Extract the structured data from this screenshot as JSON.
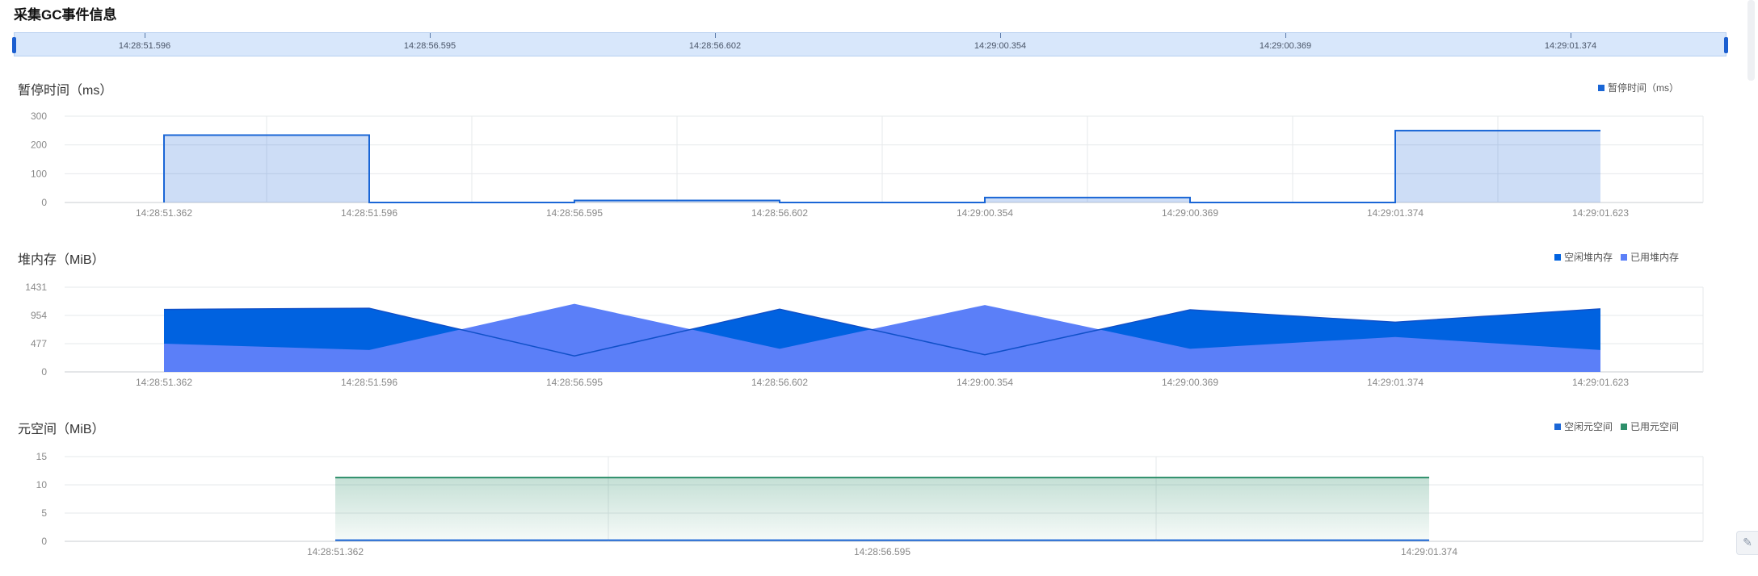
{
  "page": {
    "title": "采集GC事件信息"
  },
  "timeline": {
    "labels": [
      "14:28:51.596",
      "14:28:56.595",
      "14:28:56.602",
      "14:29:00.354",
      "14:29:00.369",
      "14:29:01.374"
    ]
  },
  "colors": {
    "pause": "#1a66d6",
    "heap_free": "#0062e0",
    "heap_used": "#5b7ff8",
    "meta_free": "#1a66d6",
    "meta_used": "#2e8f6a"
  },
  "chart_data": [
    {
      "type": "area",
      "title": "暂停时间（ms）",
      "categories": [
        "14:28:51.362",
        "14:28:51.596",
        "14:28:56.595",
        "14:28:56.602",
        "14:29:00.354",
        "14:29:00.369",
        "14:29:01.374",
        "14:29:01.623"
      ],
      "series": [
        {
          "name": "暂停时间（ms）",
          "values": [
            234,
            0,
            7,
            0,
            17,
            0,
            250,
            250
          ]
        }
      ],
      "step": true,
      "ylim": [
        0,
        300
      ],
      "yticks": [
        0,
        100,
        200,
        300
      ],
      "grid": true,
      "legend": "top-right"
    },
    {
      "type": "area",
      "title": "堆内存（MiB）",
      "categories": [
        "14:28:51.362",
        "14:28:51.596",
        "14:28:56.595",
        "14:28:56.602",
        "14:29:00.354",
        "14:29:00.369",
        "14:29:01.374",
        "14:29:01.623"
      ],
      "series": [
        {
          "name": "空闲堆内存",
          "values": [
            1055,
            1075,
            270,
            1060,
            290,
            1050,
            840,
            1065
          ]
        },
        {
          "name": "已用堆内存",
          "values": [
            477,
            370,
            1150,
            390,
            1130,
            390,
            590,
            370
          ]
        }
      ],
      "ylim": [
        0,
        1431
      ],
      "yticks": [
        0,
        477,
        954,
        1431
      ],
      "grid": true,
      "legend": "top-right"
    },
    {
      "type": "area",
      "title": "元空间（MiB）",
      "categories": [
        "14:28:51.362",
        "14:28:56.595",
        "14:29:01.374"
      ],
      "series": [
        {
          "name": "空闲元空间",
          "values": [
            0.2,
            0.2,
            0.2
          ]
        },
        {
          "name": "已用元空间",
          "values": [
            11.3,
            11.3,
            11.3
          ]
        }
      ],
      "ylim": [
        0,
        15
      ],
      "yticks": [
        0,
        5,
        10,
        15
      ],
      "grid": true,
      "legend": "top-right"
    }
  ]
}
